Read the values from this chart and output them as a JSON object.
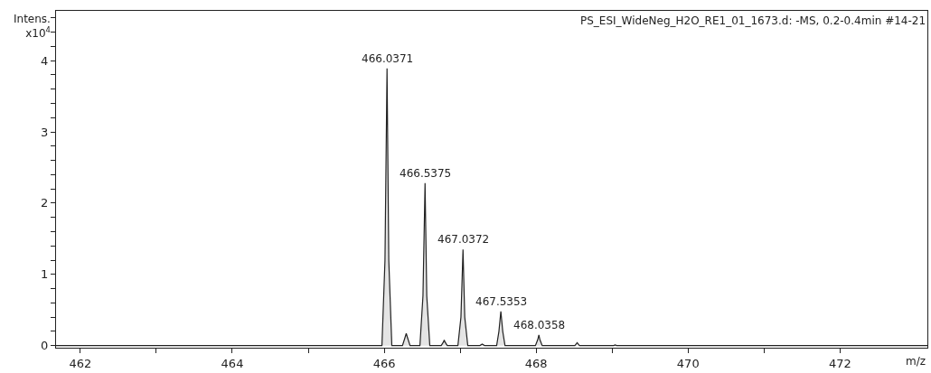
{
  "chart_data": {
    "type": "area",
    "title": "PS_ESI_WideNeg_H2O_RE1_01_1673.d: -MS, 0.2-0.4min #14-21",
    "xlabel": "m/z",
    "ylabel": "Intens. x10$^{4}$",
    "series": [
      {
        "color": "#222222",
        "x": [
          461.68,
          465.97,
          466.01,
          466.0371,
          466.06,
          466.1,
          466.24,
          466.27,
          466.29,
          466.31,
          466.34,
          466.47,
          466.51,
          466.5375,
          466.56,
          466.6,
          466.75,
          466.78,
          466.79,
          466.8,
          466.83,
          466.97,
          467.01,
          467.0372,
          467.06,
          467.1,
          467.26,
          467.29,
          467.32,
          467.48,
          467.51,
          467.5353,
          467.56,
          467.59,
          467.99,
          468.02,
          468.0358,
          468.05,
          468.08,
          468.51,
          468.54,
          468.57,
          469.02,
          469.04,
          469.06,
          473.15
        ],
        "values": [
          0,
          0,
          1.2,
          3.89,
          1.2,
          0,
          0,
          0.1,
          0.17,
          0.1,
          0,
          0,
          0.7,
          2.28,
          0.7,
          0,
          0,
          0.05,
          0.08,
          0.05,
          0,
          0,
          0.4,
          1.35,
          0.4,
          0,
          0,
          0.02,
          0,
          0,
          0.2,
          0.48,
          0.2,
          0,
          0,
          0.08,
          0.15,
          0.08,
          0,
          0,
          0.04,
          0,
          0,
          0.01,
          0,
          0
        ]
      }
    ],
    "annotations": [
      {
        "text": "466.0371",
        "x": 466.0371,
        "y": 3.89
      },
      {
        "text": "466.5375",
        "x": 466.5375,
        "y": 2.28
      },
      {
        "text": "467.0372",
        "x": 467.0372,
        "y": 1.35
      },
      {
        "text": "467.5353",
        "x": 467.5353,
        "y": 0.48
      },
      {
        "text": "468.0358",
        "x": 468.0358,
        "y": 0.15
      }
    ],
    "xlim": [
      461.68,
      473.15
    ],
    "xticks": [
      462,
      {
        "value": 463,
        "label": null
      },
      464,
      {
        "value": 465,
        "label": null
      },
      466,
      {
        "value": 467,
        "label": null
      },
      468,
      {
        "value": 469,
        "label": null
      },
      470,
      {
        "value": 471,
        "label": null
      },
      472
    ],
    "ylim": [
      -0.03,
      4.7
    ],
    "yticks": [
      0,
      {
        "value": 0.2,
        "label": null
      },
      {
        "value": 0.4,
        "label": null
      },
      {
        "value": 0.6,
        "label": null
      },
      {
        "value": 0.8,
        "label": null
      },
      1,
      {
        "value": 1.2,
        "label": null
      },
      {
        "value": 1.4,
        "label": null
      },
      {
        "value": 1.6,
        "label": null
      },
      {
        "value": 1.8,
        "label": null
      },
      2,
      {
        "value": 2.2,
        "label": null
      },
      {
        "value": 2.4,
        "label": null
      },
      {
        "value": 2.6,
        "label": null
      },
      {
        "value": 2.8,
        "label": null
      },
      3,
      {
        "value": 3.2,
        "label": null
      },
      {
        "value": 3.4,
        "label": null
      },
      {
        "value": 3.6,
        "label": null
      },
      {
        "value": 3.8,
        "label": null
      },
      4,
      {
        "value": 4.2,
        "label": null
      },
      {
        "value": 4.4,
        "label": null
      },
      {
        "value": 4.6,
        "label": null
      }
    ],
    "marker": "none",
    "line_style": "solid"
  }
}
